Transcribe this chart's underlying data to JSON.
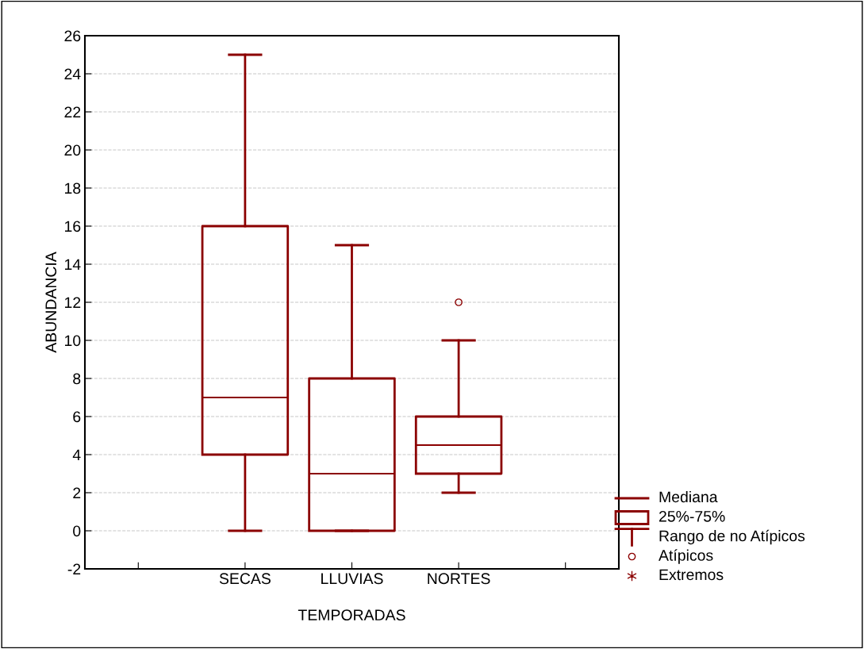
{
  "chart_data": {
    "type": "box",
    "xlabel": "TEMPORADAS",
    "ylabel": "ABUNDANCIA",
    "categories": [
      null,
      "SECAS",
      "LLUVIAS",
      "NORTES",
      null
    ],
    "boxes": [
      null,
      {
        "low": 0,
        "q1": 4,
        "median": 7,
        "q3": 16,
        "high": 25
      },
      {
        "low": 0,
        "q1": 0,
        "median": 3,
        "q3": 8,
        "high": 15
      },
      {
        "low": 2,
        "q1": 3,
        "median": 4.5,
        "q3": 6,
        "high": 10,
        "outliers": [
          12
        ]
      },
      null
    ],
    "color": "#8b0000",
    "ylim": [
      -2,
      26
    ],
    "yticks": [
      -2,
      0,
      2,
      4,
      6,
      8,
      10,
      12,
      14,
      16,
      18,
      20,
      22,
      24,
      26
    ],
    "grid": "y",
    "annotations": [
      "Mediana",
      "25%-75%",
      "Rango de no Atípicos",
      "Atípicos",
      "Extremos"
    ]
  }
}
